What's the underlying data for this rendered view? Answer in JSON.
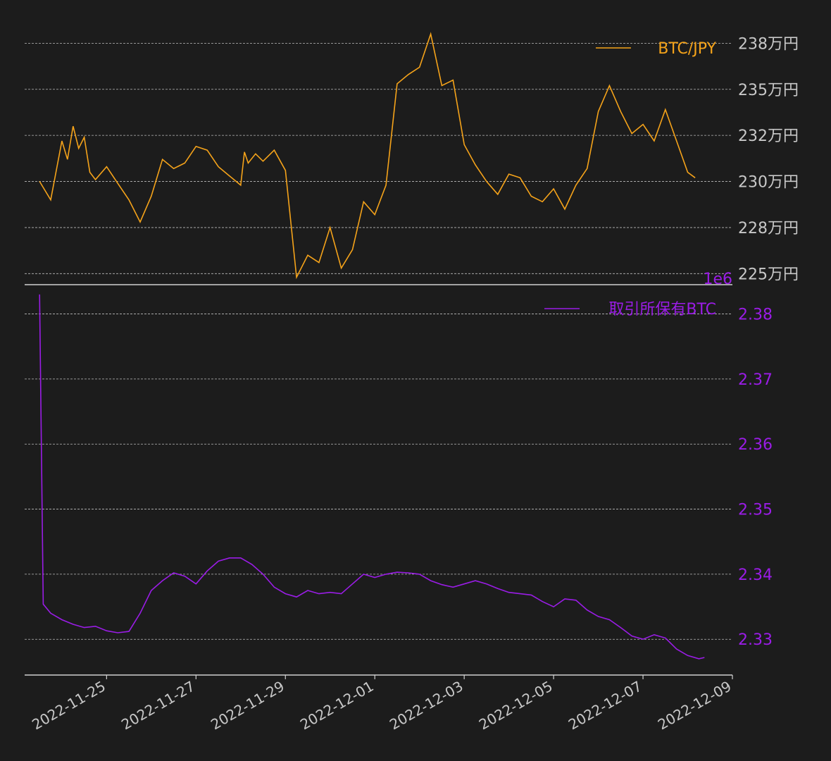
{
  "colors": {
    "background": "#1c1c1c",
    "price_line": "#f5a31a",
    "holdings_line": "#9a1ce6",
    "grid": "#bdbdbd",
    "axis_text": "#c8c8c8"
  },
  "chart_data": [
    {
      "type": "line",
      "series": [
        {
          "name": "BTC/JPY",
          "x": [
            "2022-11-23T12:00",
            "2022-11-23T18:00",
            "2022-11-24T00:00",
            "2022-11-24T03:00",
            "2022-11-24T06:00",
            "2022-11-24T09:00",
            "2022-11-24T12:00",
            "2022-11-24T15:00",
            "2022-11-24T18:00",
            "2022-11-25T00:00",
            "2022-11-25T06:00",
            "2022-11-25T12:00",
            "2022-11-25T18:00",
            "2022-11-26T00:00",
            "2022-11-26T06:00",
            "2022-11-26T12:00",
            "2022-11-26T18:00",
            "2022-11-27T00:00",
            "2022-11-27T06:00",
            "2022-11-27T12:00",
            "2022-11-27T18:00",
            "2022-11-28T00:00",
            "2022-11-28T02:00",
            "2022-11-28T04:00",
            "2022-11-28T08:00",
            "2022-11-28T12:00",
            "2022-11-28T18:00",
            "2022-11-29T00:00",
            "2022-11-29T06:00",
            "2022-11-29T12:00",
            "2022-11-29T18:00",
            "2022-11-30T00:00",
            "2022-11-30T06:00",
            "2022-11-30T12:00",
            "2022-11-30T18:00",
            "2022-12-01T00:00",
            "2022-12-01T06:00",
            "2022-12-01T12:00",
            "2022-12-01T18:00",
            "2022-12-02T00:00",
            "2022-12-02T06:00",
            "2022-12-02T12:00",
            "2022-12-02T18:00",
            "2022-12-03T00:00",
            "2022-12-03T06:00",
            "2022-12-03T12:00",
            "2022-12-03T18:00",
            "2022-12-04T00:00",
            "2022-12-04T06:00",
            "2022-12-04T12:00",
            "2022-12-04T18:00",
            "2022-12-05T00:00",
            "2022-12-05T06:00",
            "2022-12-05T12:00",
            "2022-12-05T18:00",
            "2022-12-06T00:00",
            "2022-12-06T06:00",
            "2022-12-06T12:00",
            "2022-12-06T18:00",
            "2022-12-07T00:00",
            "2022-12-07T06:00",
            "2022-12-07T12:00",
            "2022-12-07T18:00",
            "2022-12-08T00:00",
            "2022-12-08T04:00"
          ],
          "values": [
            2300000,
            2290000,
            2322000,
            2312000,
            2330000,
            2318000,
            2324000,
            2305000,
            2301000,
            2308000,
            2299000,
            2290000,
            2278000,
            2292000,
            2312000,
            2307000,
            2310000,
            2319000,
            2317000,
            2308000,
            2303000,
            2298000,
            2316000,
            2310000,
            2315000,
            2311000,
            2317000,
            2306000,
            2248000,
            2260000,
            2256000,
            2275000,
            2253000,
            2263000,
            2289000,
            2282000,
            2298000,
            2353000,
            2358000,
            2362000,
            2380000,
            2352000,
            2355000,
            2320000,
            2309000,
            2300000,
            2293000,
            2304000,
            2302000,
            2292000,
            2289000,
            2296000,
            2285000,
            2298000,
            2307000,
            2338000,
            2352000,
            2338000,
            2326000,
            2331000,
            2322000,
            2339000,
            2322000,
            2305000,
            2302000
          ]
        }
      ],
      "ylim": [
        2244000,
        2387000
      ],
      "yticks": [
        2250000,
        2275000,
        2300000,
        2325000,
        2350000,
        2375000
      ],
      "ytick_labels": [
        "225万円",
        "228万円",
        "230万円",
        "232万円",
        "235万円",
        "238万円"
      ],
      "grid": true,
      "legend": "top-right"
    },
    {
      "type": "line",
      "series": [
        {
          "name": "取引所保有BTC",
          "x": [
            "2022-11-23T12:00",
            "2022-11-23T14:00",
            "2022-11-23T18:00",
            "2022-11-24T00:00",
            "2022-11-24T06:00",
            "2022-11-24T12:00",
            "2022-11-24T18:00",
            "2022-11-25T00:00",
            "2022-11-25T06:00",
            "2022-11-25T12:00",
            "2022-11-25T18:00",
            "2022-11-26T00:00",
            "2022-11-26T06:00",
            "2022-11-26T12:00",
            "2022-11-26T18:00",
            "2022-11-27T00:00",
            "2022-11-27T06:00",
            "2022-11-27T12:00",
            "2022-11-27T18:00",
            "2022-11-28T00:00",
            "2022-11-28T06:00",
            "2022-11-28T12:00",
            "2022-11-28T18:00",
            "2022-11-29T00:00",
            "2022-11-29T06:00",
            "2022-11-29T12:00",
            "2022-11-29T18:00",
            "2022-11-30T00:00",
            "2022-11-30T06:00",
            "2022-11-30T12:00",
            "2022-11-30T18:00",
            "2022-12-01T00:00",
            "2022-12-01T06:00",
            "2022-12-01T12:00",
            "2022-12-01T18:00",
            "2022-12-02T00:00",
            "2022-12-02T06:00",
            "2022-12-02T12:00",
            "2022-12-02T18:00",
            "2022-12-03T00:00",
            "2022-12-03T06:00",
            "2022-12-03T12:00",
            "2022-12-03T18:00",
            "2022-12-04T00:00",
            "2022-12-04T06:00",
            "2022-12-04T12:00",
            "2022-12-04T18:00",
            "2022-12-05T00:00",
            "2022-12-05T06:00",
            "2022-12-05T12:00",
            "2022-12-05T18:00",
            "2022-12-06T00:00",
            "2022-12-06T06:00",
            "2022-12-06T12:00",
            "2022-12-06T18:00",
            "2022-12-07T00:00",
            "2022-12-07T06:00",
            "2022-12-07T12:00",
            "2022-12-07T18:00",
            "2022-12-08T00:00",
            "2022-12-08T06:00",
            "2022-12-08T09:00"
          ],
          "values": [
            2.383,
            2.3354,
            2.334,
            2.333,
            2.3323,
            2.3318,
            2.332,
            2.3313,
            2.331,
            2.3312,
            2.334,
            2.3375,
            2.339,
            2.3402,
            2.3397,
            2.3385,
            2.3405,
            2.342,
            2.3425,
            2.3425,
            2.3415,
            2.34,
            2.338,
            2.337,
            2.3365,
            2.3375,
            2.337,
            2.3372,
            2.337,
            2.3385,
            2.34,
            2.3395,
            2.34,
            2.3403,
            2.3402,
            2.34,
            2.339,
            2.3384,
            2.338,
            2.3385,
            2.339,
            2.3385,
            2.3378,
            2.3372,
            2.337,
            2.3368,
            2.3358,
            2.335,
            2.3362,
            2.336,
            2.3345,
            2.3335,
            2.333,
            2.3318,
            2.3305,
            2.33,
            2.3307,
            2.3302,
            2.3285,
            2.3275,
            2.327,
            2.3272
          ]
        }
      ],
      "ylim": [
        2.3245,
        2.3845
      ],
      "yticks": [
        2.33,
        2.34,
        2.35,
        2.36,
        2.37,
        2.38
      ],
      "ytick_labels": [
        "2.33",
        "2.34",
        "2.35",
        "2.36",
        "2.37",
        "2.38"
      ],
      "offset_label": "1e6",
      "grid": true,
      "legend": "top-right"
    }
  ],
  "x_axis": {
    "xlim": [
      "2022-11-23T04:00",
      "2022-12-09T00:00"
    ],
    "ticks": [
      "2022-11-25",
      "2022-11-27",
      "2022-11-29",
      "2022-12-01",
      "2022-12-03",
      "2022-12-05",
      "2022-12-07",
      "2022-12-09"
    ],
    "tick_labels": [
      "2022-11-25",
      "2022-11-27",
      "2022-11-29",
      "2022-12-01",
      "2022-12-03",
      "2022-12-05",
      "2022-12-07",
      "2022-12-09"
    ]
  }
}
